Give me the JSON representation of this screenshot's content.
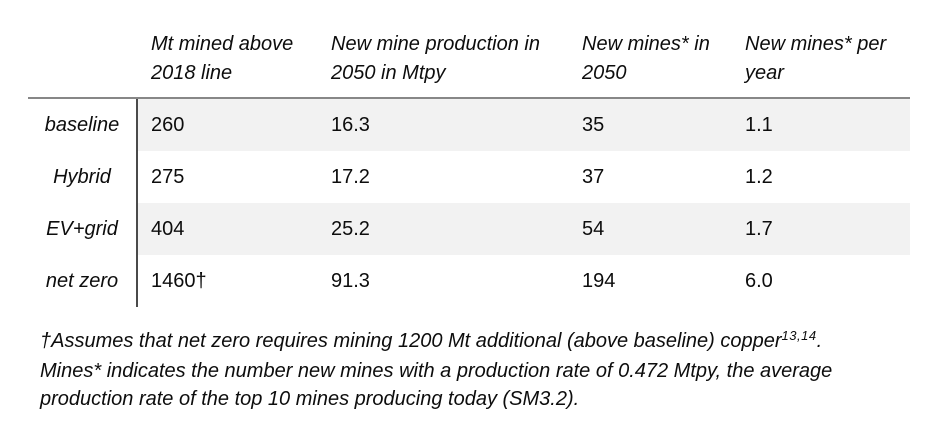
{
  "table": {
    "columns": [
      {
        "line1": "Mt mined above",
        "line2": "2018 line"
      },
      {
        "line1": "New mine production in",
        "line2": "2050 in Mtpy"
      },
      {
        "line1": "New mines* in",
        "line2": "2050"
      },
      {
        "line1": "New mines* per",
        "line2": "year"
      }
    ],
    "rows": [
      {
        "label": "baseline",
        "values": [
          "260",
          "16.3",
          "35",
          "1.1"
        ]
      },
      {
        "label": "Hybrid",
        "values": [
          "275",
          "17.2",
          "37",
          "1.2"
        ]
      },
      {
        "label": "EV+grid",
        "values": [
          "404",
          "25.2",
          "54",
          "1.7"
        ]
      },
      {
        "label": "net zero",
        "values": [
          "1460†",
          "91.3",
          "194",
          "6.0"
        ]
      }
    ]
  },
  "footnote": {
    "line1_text": "†Assumes that net zero requires mining 1200 Mt additional (above baseline) copper",
    "line1_sup": "13,14",
    "line1_end": ".",
    "line2": "Mines* indicates the number new mines with a production rate of 0.472 Mtpy, the average",
    "line3": "production rate of the top 10 mines producing today (SM3.2)."
  },
  "colors": {
    "row_shading": "#f2f2f2",
    "header_rule": "#878787",
    "label_divider": "#4a4a4a",
    "text": "#0d0d0d"
  }
}
